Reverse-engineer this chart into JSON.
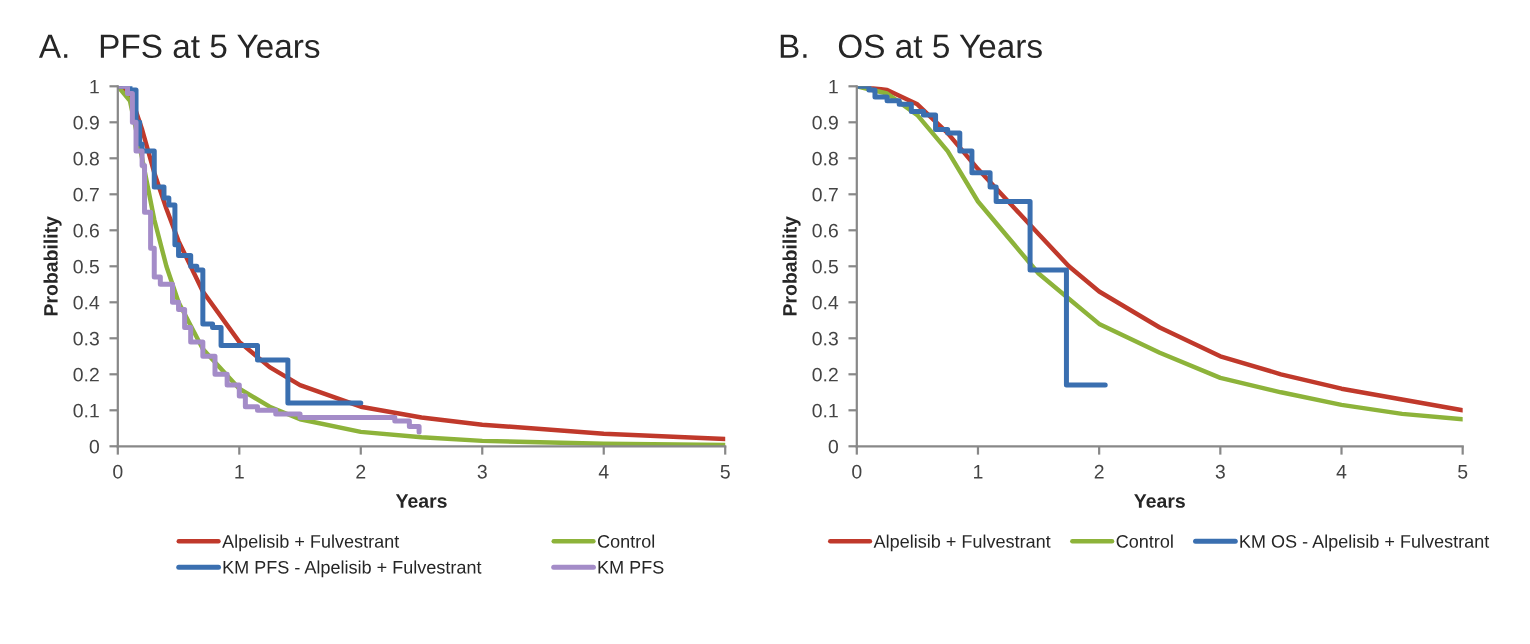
{
  "chart_data": [
    {
      "type": "line",
      "title": "A.   PFS at 5 Years",
      "xlabel": "Years",
      "ylabel": "Probability",
      "xlim": [
        0,
        5
      ],
      "ylim": [
        0,
        1
      ],
      "xticks": [
        0,
        1,
        2,
        3,
        4,
        5
      ],
      "yticks": [
        0,
        0.1,
        0.2,
        0.3,
        0.4,
        0.5,
        0.6,
        0.7,
        0.8,
        0.9,
        1
      ],
      "legend": "bottom",
      "series": [
        {
          "name": "Alpelisib + Fulvestrant",
          "color": "#c0392b",
          "x": [
            0,
            0.1,
            0.2,
            0.3,
            0.4,
            0.5,
            0.7,
            1,
            1.25,
            1.5,
            2,
            2.5,
            3,
            4,
            5
          ],
          "values": [
            1,
            0.98,
            0.88,
            0.76,
            0.66,
            0.57,
            0.43,
            0.29,
            0.22,
            0.17,
            0.11,
            0.08,
            0.06,
            0.035,
            0.02
          ]
        },
        {
          "name": "Control",
          "color": "#8db33a",
          "x": [
            0,
            0.1,
            0.2,
            0.3,
            0.4,
            0.5,
            0.7,
            1,
            1.25,
            1.5,
            2,
            2.5,
            3,
            4,
            5
          ],
          "values": [
            1,
            0.96,
            0.8,
            0.63,
            0.5,
            0.4,
            0.27,
            0.16,
            0.11,
            0.075,
            0.04,
            0.025,
            0.015,
            0.007,
            0.004
          ]
        },
        {
          "name": "KM PFS - Alpelisib + Fulvestrant",
          "color": "#3a6fb0",
          "type": "step",
          "x": [
            0,
            0.1,
            0.15,
            0.18,
            0.2,
            0.3,
            0.38,
            0.42,
            0.47,
            0.5,
            0.6,
            0.65,
            0.7,
            0.78,
            0.85,
            1.1,
            1.15,
            1.4,
            2.0
          ],
          "values": [
            1,
            0.99,
            0.9,
            0.84,
            0.82,
            0.72,
            0.69,
            0.67,
            0.56,
            0.53,
            0.5,
            0.49,
            0.34,
            0.33,
            0.28,
            0.28,
            0.24,
            0.12,
            0.12
          ]
        },
        {
          "name": "KM PFS",
          "color": "#a48cc8",
          "type": "step",
          "x": [
            0,
            0.08,
            0.12,
            0.15,
            0.2,
            0.22,
            0.27,
            0.3,
            0.35,
            0.45,
            0.5,
            0.55,
            0.6,
            0.7,
            0.8,
            0.9,
            1.0,
            1.05,
            1.15,
            1.3,
            1.5,
            2.28,
            2.4,
            2.48
          ],
          "values": [
            1,
            0.98,
            0.9,
            0.82,
            0.78,
            0.65,
            0.55,
            0.47,
            0.45,
            0.4,
            0.38,
            0.33,
            0.29,
            0.25,
            0.2,
            0.17,
            0.14,
            0.11,
            0.1,
            0.09,
            0.08,
            0.07,
            0.055,
            0.04
          ]
        }
      ]
    },
    {
      "type": "line",
      "title": "B.   OS at 5 Years",
      "xlabel": "Years",
      "ylabel": "Probability",
      "xlim": [
        0,
        5
      ],
      "ylim": [
        0,
        1
      ],
      "xticks": [
        0,
        1,
        2,
        3,
        4,
        5
      ],
      "yticks": [
        0,
        0.1,
        0.2,
        0.3,
        0.4,
        0.5,
        0.6,
        0.7,
        0.8,
        0.9,
        1
      ],
      "legend": "bottom",
      "series": [
        {
          "name": "Alpelisib + Fulvestrant",
          "color": "#c0392b",
          "x": [
            0,
            0.25,
            0.5,
            0.75,
            1,
            1.25,
            1.5,
            1.75,
            2,
            2.5,
            3,
            3.5,
            4,
            4.5,
            5
          ],
          "values": [
            1,
            0.99,
            0.95,
            0.87,
            0.77,
            0.68,
            0.59,
            0.5,
            0.43,
            0.33,
            0.25,
            0.2,
            0.16,
            0.13,
            0.1
          ]
        },
        {
          "name": "Control",
          "color": "#8db33a",
          "x": [
            0,
            0.25,
            0.5,
            0.75,
            1,
            1.25,
            1.5,
            1.75,
            2,
            2.5,
            3,
            3.5,
            4,
            4.5,
            5
          ],
          "values": [
            1,
            0.98,
            0.92,
            0.82,
            0.68,
            0.58,
            0.48,
            0.41,
            0.34,
            0.26,
            0.19,
            0.15,
            0.115,
            0.09,
            0.075
          ]
        },
        {
          "name": "KM OS - Alpelisib + Fulvestrant",
          "color": "#3a6fb0",
          "type": "step",
          "x": [
            0,
            0.1,
            0.15,
            0.25,
            0.35,
            0.45,
            0.55,
            0.65,
            0.75,
            0.85,
            0.95,
            1.1,
            1.15,
            1.43,
            1.73,
            2.05
          ],
          "values": [
            1,
            0.99,
            0.97,
            0.96,
            0.95,
            0.93,
            0.92,
            0.88,
            0.87,
            0.82,
            0.76,
            0.72,
            0.68,
            0.49,
            0.17,
            0.17
          ]
        }
      ]
    }
  ]
}
